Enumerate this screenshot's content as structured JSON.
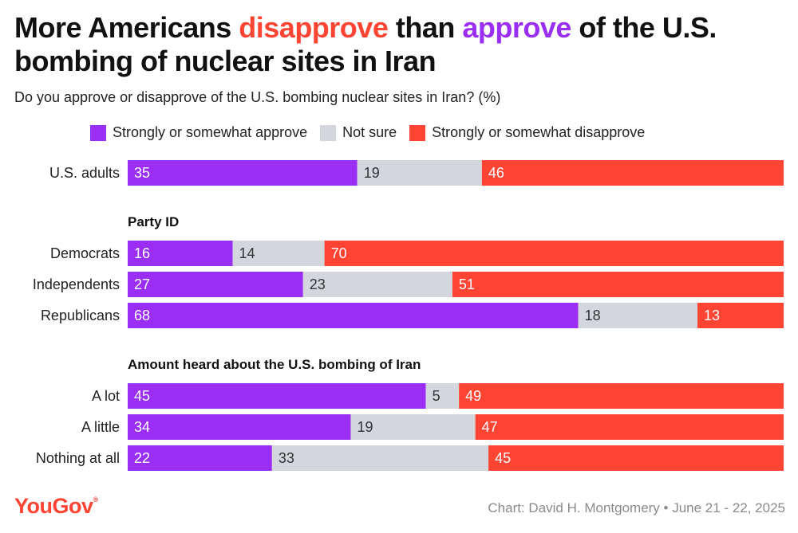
{
  "title": {
    "part1": "More Americans ",
    "highlight1": "disapprove",
    "part2": " than ",
    "highlight2": "approve",
    "part3": " of the U.S. bombing of nuclear sites in Iran"
  },
  "subtitle": "Do you approve or disapprove of the U.S. bombing nuclear sites in Iran? (%)",
  "footer": {
    "logo": "YouGov",
    "credit": "Chart: David H. Montgomery • June 21 - 22, 2025"
  },
  "colors": {
    "approve": "#9b2ef5",
    "not_sure": "#d4d6dd",
    "disapprove": "#ff4433"
  },
  "chart_data": {
    "type": "bar",
    "orientation": "horizontal-stacked",
    "title": "More Americans disapprove than approve of the U.S. bombing of nuclear sites in Iran",
    "xlim": [
      0,
      100
    ],
    "legend": [
      {
        "name": "Strongly or somewhat approve",
        "key": "approve"
      },
      {
        "name": "Not sure",
        "key": "not_sure"
      },
      {
        "name": "Strongly or somewhat disapprove",
        "key": "disapprove"
      }
    ],
    "groups": [
      {
        "heading": "",
        "rows": [
          {
            "label": "U.S. adults",
            "approve": 35,
            "not_sure": 19,
            "disapprove": 46
          }
        ]
      },
      {
        "heading": "Party ID",
        "rows": [
          {
            "label": "Democrats",
            "approve": 16,
            "not_sure": 14,
            "disapprove": 70
          },
          {
            "label": "Independents",
            "approve": 27,
            "not_sure": 23,
            "disapprove": 51
          },
          {
            "label": "Republicans",
            "approve": 68,
            "not_sure": 18,
            "disapprove": 13
          }
        ]
      },
      {
        "heading": "Amount heard about the U.S. bombing of Iran",
        "rows": [
          {
            "label": "A lot",
            "approve": 45,
            "not_sure": 5,
            "disapprove": 49
          },
          {
            "label": "A little",
            "approve": 34,
            "not_sure": 19,
            "disapprove": 47
          },
          {
            "label": "Nothing at all",
            "approve": 22,
            "not_sure": 33,
            "disapprove": 45
          }
        ]
      }
    ]
  }
}
